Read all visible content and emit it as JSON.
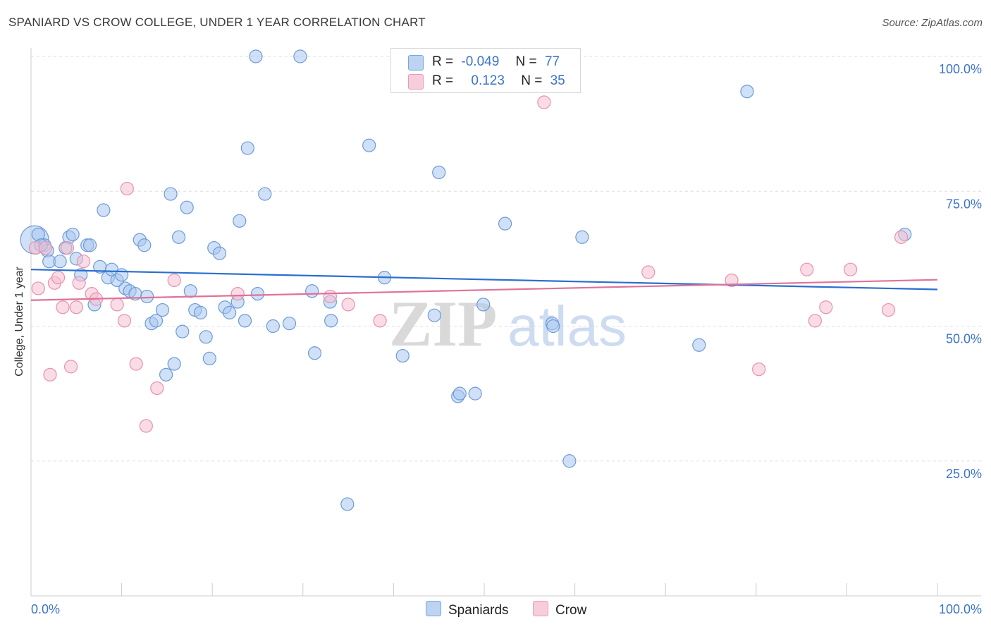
{
  "title": "SPANIARD VS CROW COLLEGE, UNDER 1 YEAR CORRELATION CHART",
  "source": "Source: ZipAtlas.com",
  "watermark": {
    "zip": "ZIP",
    "atlas": "atlas"
  },
  "colors": {
    "blue_fill": "#a9c6ee",
    "blue_stroke": "#6b9bd8",
    "blue_line": "#2a6fcf",
    "pink_fill": "#f4bfd0",
    "pink_stroke": "#e891ad",
    "pink_line": "#e07299",
    "grid": "#dddddd",
    "axis_text": "#3b74c9"
  },
  "legend": {
    "rows": [
      {
        "r_label": "R =",
        "r_value": "-0.049",
        "n_label": "N =",
        "n_value": "77"
      },
      {
        "r_label": "R =",
        "r_value": "0.123",
        "n_label": "N =",
        "n_value": "35"
      }
    ]
  },
  "bottom_legend": {
    "spaniards": "Spaniards",
    "crow": "Crow"
  },
  "chart_data": {
    "type": "scatter",
    "title": "SPANIARD VS CROW COLLEGE, UNDER 1 YEAR CORRELATION CHART",
    "xlabel": "",
    "ylabel": "College, Under 1 year",
    "xlim": [
      0,
      100
    ],
    "ylim": [
      0,
      100
    ],
    "x_tick_labels": [
      "0.0%",
      "100.0%"
    ],
    "y_ticks": [
      25,
      50,
      75,
      100
    ],
    "y_tick_labels": [
      "25.0%",
      "50.0%",
      "75.0%",
      "100.0%"
    ],
    "grid": true,
    "series": [
      {
        "name": "Spaniards",
        "color": "#6b9bd8",
        "r": -0.049,
        "n": 77,
        "trend": {
          "x": [
            0,
            100
          ],
          "y": [
            60.5,
            56.8
          ]
        },
        "points": [
          [
            0.4,
            66,
            3
          ],
          [
            0.8,
            67,
            1
          ],
          [
            1.5,
            65,
            1
          ],
          [
            1.8,
            64,
            1
          ],
          [
            2,
            62,
            1
          ],
          [
            3.2,
            62,
            1
          ],
          [
            3.8,
            64.5,
            1
          ],
          [
            4.2,
            66.5,
            1
          ],
          [
            4.6,
            67,
            1
          ],
          [
            5,
            62.5,
            1
          ],
          [
            5.5,
            59.5,
            1
          ],
          [
            6.2,
            65,
            1
          ],
          [
            6.5,
            65,
            1
          ],
          [
            7,
            54,
            1
          ],
          [
            7.6,
            61,
            1
          ],
          [
            8,
            71.5,
            1
          ],
          [
            8.5,
            59,
            1
          ],
          [
            8.9,
            60.5,
            1
          ],
          [
            9.5,
            58.5,
            1
          ],
          [
            10,
            59.5,
            1
          ],
          [
            10.4,
            57,
            1
          ],
          [
            10.9,
            56.5,
            1
          ],
          [
            11.5,
            56,
            1
          ],
          [
            12,
            66,
            1
          ],
          [
            12.5,
            65,
            1
          ],
          [
            12.8,
            55.5,
            1
          ],
          [
            13.3,
            50.5,
            1
          ],
          [
            13.8,
            51,
            1
          ],
          [
            14.5,
            53,
            1
          ],
          [
            14.9,
            41,
            1
          ],
          [
            15.4,
            74.5,
            1
          ],
          [
            15.8,
            43,
            1
          ],
          [
            16.3,
            66.5,
            1
          ],
          [
            16.7,
            49,
            1
          ],
          [
            17.2,
            72,
            1
          ],
          [
            17.6,
            56.5,
            1
          ],
          [
            18.1,
            53,
            1
          ],
          [
            18.7,
            52.5,
            1
          ],
          [
            19.3,
            48,
            1
          ],
          [
            19.7,
            44,
            1
          ],
          [
            20.2,
            64.5,
            1
          ],
          [
            20.8,
            63.5,
            1
          ],
          [
            21.4,
            53.5,
            1
          ],
          [
            21.9,
            52.5,
            1
          ],
          [
            22.8,
            54.5,
            1
          ],
          [
            23,
            69.5,
            1
          ],
          [
            23.6,
            51,
            1
          ],
          [
            23.9,
            83,
            1
          ],
          [
            24.8,
            100,
            1
          ],
          [
            25,
            56,
            1
          ],
          [
            25.8,
            74.5,
            1
          ],
          [
            26.7,
            50,
            1
          ],
          [
            28.5,
            50.5,
            1
          ],
          [
            29.7,
            100,
            1
          ],
          [
            31,
            56.5,
            1
          ],
          [
            31.3,
            45,
            1
          ],
          [
            33,
            54.5,
            1
          ],
          [
            33.1,
            51,
            1
          ],
          [
            34.9,
            17,
            1
          ],
          [
            37.3,
            83.5,
            1
          ],
          [
            39,
            59,
            1
          ],
          [
            41,
            44.5,
            1
          ],
          [
            44.5,
            52,
            1
          ],
          [
            45,
            78.5,
            1
          ],
          [
            47.1,
            37,
            1
          ],
          [
            47.3,
            37.5,
            1
          ],
          [
            49,
            37.5,
            1
          ],
          [
            49.9,
            54,
            1
          ],
          [
            52.3,
            69,
            1
          ],
          [
            57.5,
            50.5,
            1
          ],
          [
            57.6,
            50,
            1
          ],
          [
            59.4,
            25,
            1
          ],
          [
            60.8,
            66.5,
            1
          ],
          [
            73.7,
            46.5,
            1
          ],
          [
            79,
            93.5,
            1
          ],
          [
            96.4,
            67,
            1
          ],
          [
            1.1,
            65,
            1
          ]
        ]
      },
      {
        "name": "Crow",
        "color": "#e891ad",
        "r": 0.123,
        "n": 35,
        "trend": {
          "x": [
            0,
            100
          ],
          "y": [
            54.8,
            58.6
          ]
        },
        "points": [
          [
            0.5,
            64.5,
            1
          ],
          [
            0.8,
            57,
            1
          ],
          [
            1.6,
            64.5,
            1
          ],
          [
            2.1,
            41,
            1
          ],
          [
            2.6,
            58,
            1
          ],
          [
            3,
            59,
            1
          ],
          [
            3.5,
            53.5,
            1
          ],
          [
            4,
            64.5,
            1
          ],
          [
            4.4,
            42.5,
            1
          ],
          [
            5,
            53.5,
            1
          ],
          [
            5.3,
            58,
            1
          ],
          [
            5.8,
            62,
            1
          ],
          [
            6.7,
            56,
            1
          ],
          [
            7.2,
            55,
            1
          ],
          [
            9.5,
            54,
            1
          ],
          [
            10.3,
            51,
            1
          ],
          [
            10.6,
            75.5,
            1
          ],
          [
            11.6,
            43,
            1
          ],
          [
            12.7,
            31.5,
            1
          ],
          [
            13.9,
            38.5,
            1
          ],
          [
            15.8,
            58.5,
            1
          ],
          [
            22.8,
            56,
            1
          ],
          [
            33,
            55.5,
            1
          ],
          [
            35,
            54,
            1
          ],
          [
            38.5,
            51,
            1
          ],
          [
            56.6,
            91.5,
            1
          ],
          [
            68.1,
            60,
            1
          ],
          [
            77.3,
            58.5,
            1
          ],
          [
            80.3,
            42,
            1
          ],
          [
            85.6,
            60.5,
            1
          ],
          [
            86.5,
            51,
            1
          ],
          [
            87.7,
            53.5,
            1
          ],
          [
            90.4,
            60.5,
            1
          ],
          [
            94.6,
            53,
            1
          ],
          [
            96,
            66.5,
            1
          ]
        ]
      }
    ]
  }
}
